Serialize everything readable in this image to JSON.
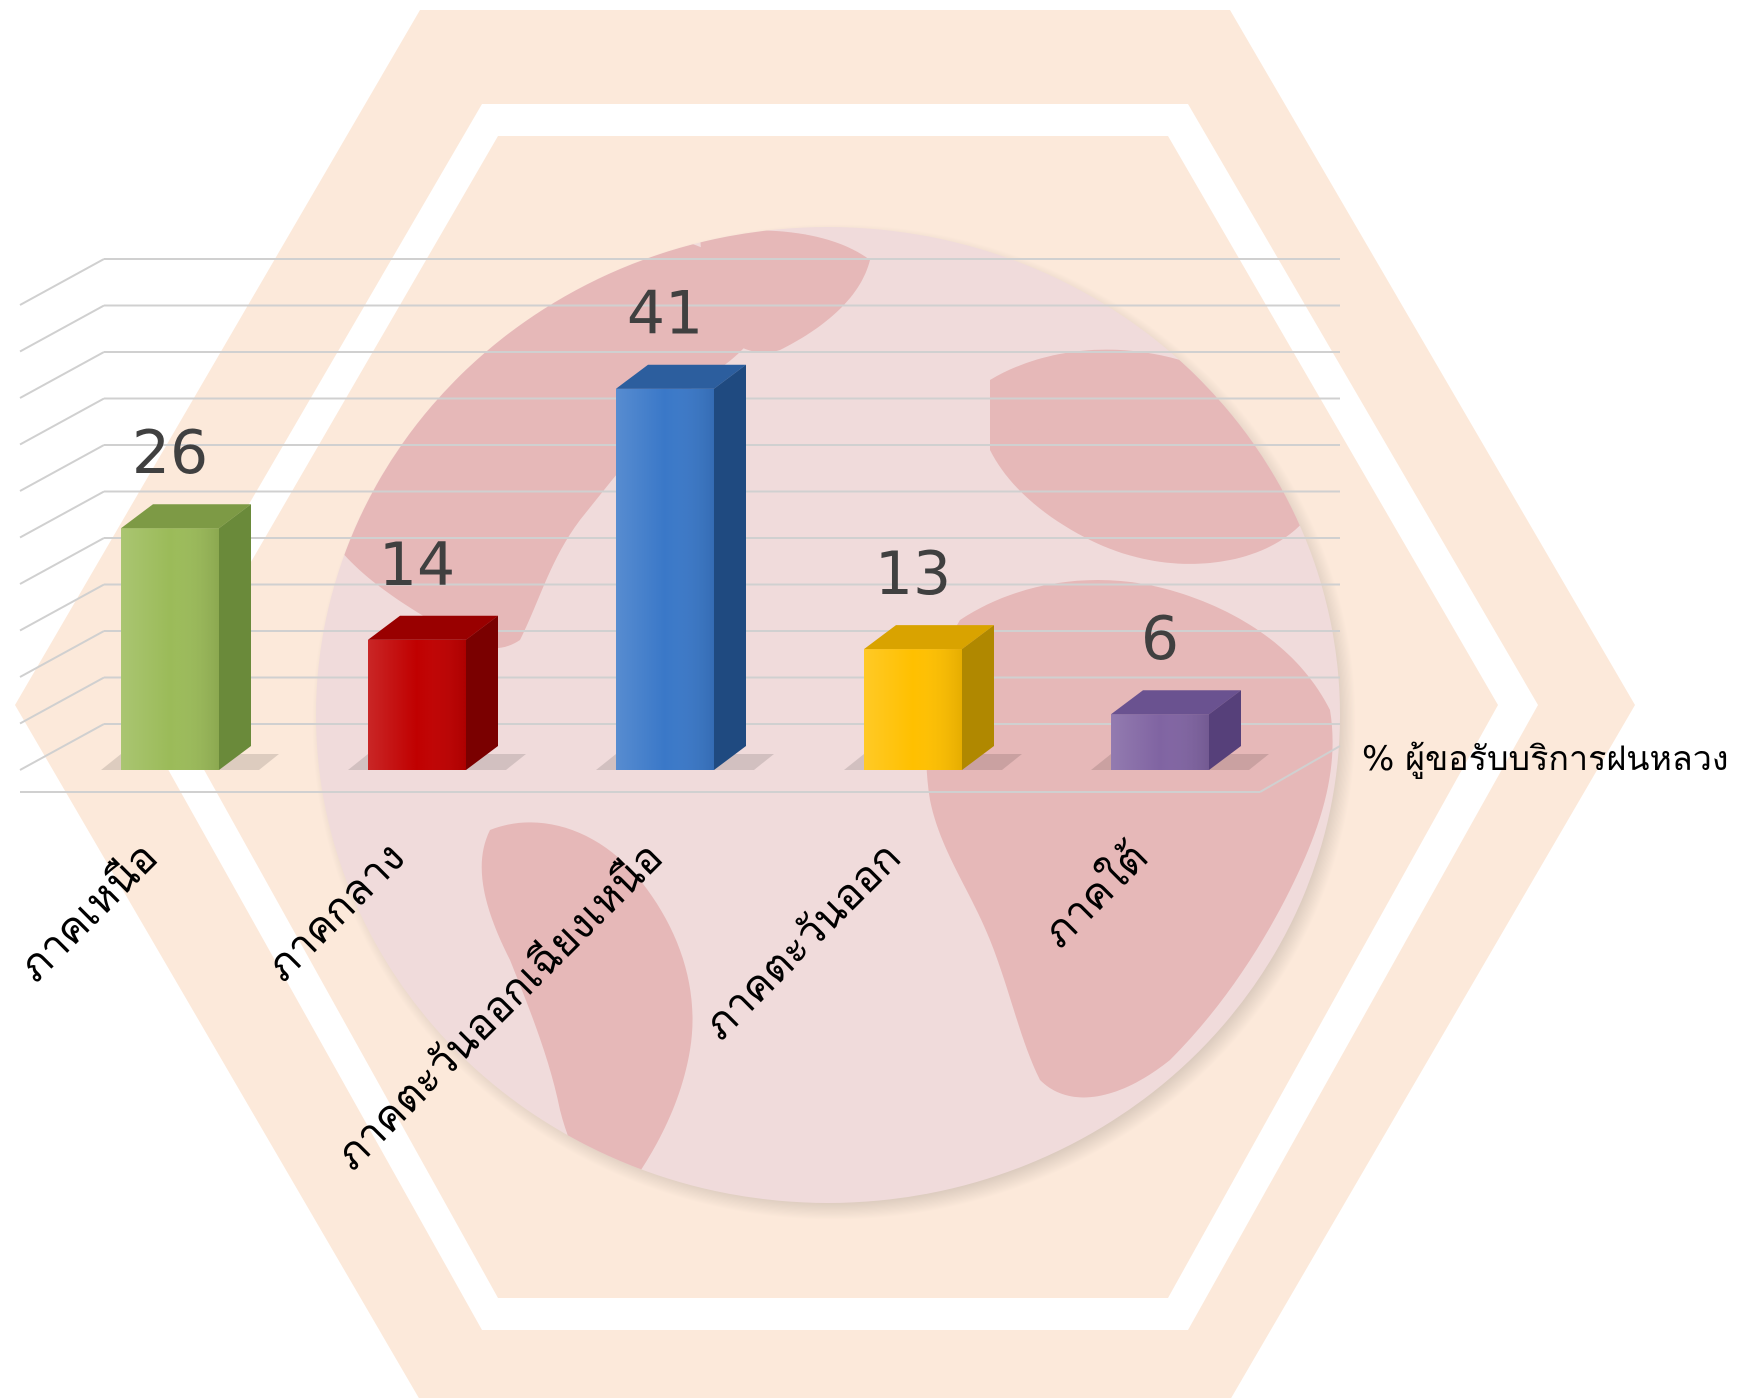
{
  "chart_data": {
    "type": "bar",
    "categories": [
      "ภาคเหนือ",
      "ภาคกลาง",
      "ภาคตะวันออกเฉียงเหนือ",
      "ภาคตะวันออก",
      "ภาคใต้"
    ],
    "series": [
      {
        "name": "% ผู้ขอรับบริการฝนหลวง",
        "values": [
          26,
          14,
          41,
          13,
          6
        ]
      }
    ],
    "data_labels": [
      "26",
      "14",
      "41",
      "13",
      "6"
    ],
    "ylim": [
      0,
      50
    ],
    "grid": true,
    "style": "3d-column",
    "legend_position": "right",
    "bar_colors": [
      "#9BBB59",
      "#C00000",
      "#3A78C8",
      "#FFC000",
      "#8064A2"
    ],
    "side_colors": [
      "#6A8A3A",
      "#7A0000",
      "#1F4A80",
      "#B08800",
      "#56407A"
    ],
    "top_colors": [
      "#7D9A45",
      "#990000",
      "#2C5E9E",
      "#D9A300",
      "#6A5290"
    ]
  },
  "decoration": {
    "hexagon_fill": "#FCE9DA",
    "globe_fill": "#F0DBDB",
    "land_fill": "#E6B8B8"
  }
}
